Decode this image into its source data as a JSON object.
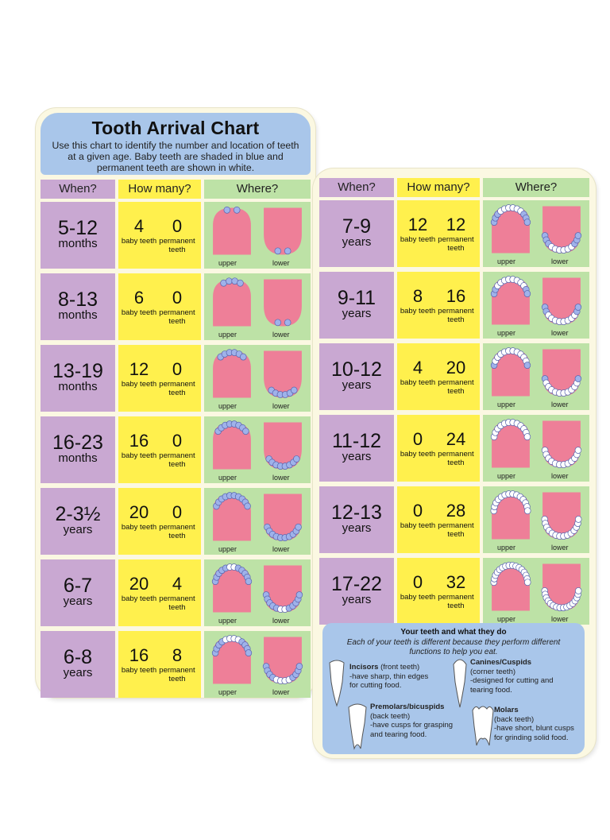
{
  "title": "Tooth Arrival Chart",
  "subtitle": "Use this chart to identify the number and location of teeth at a given age. Baby teeth are shaded in blue and permanent teeth are shown in white.",
  "headers": {
    "when": "When?",
    "how_many": "How many?",
    "where": "Where?"
  },
  "labels": {
    "baby": "baby teeth",
    "permanent": "permanent teeth",
    "upper": "upper",
    "lower": "lower"
  },
  "colors": {
    "when": "#c9a8d2",
    "how_many": "#fff04d",
    "where": "#bde2a6",
    "gum": "#ee7f98",
    "baby_tooth": "#9fb2ea",
    "permanent_tooth": "#ffffff",
    "title_box": "#a9c6ea"
  },
  "left_rows": [
    {
      "age": "5-12",
      "unit": "months",
      "baby": "4",
      "permanent": "0",
      "upper_baby": 2,
      "upper_perm": 0,
      "lower_baby": 2,
      "lower_perm": 0
    },
    {
      "age": "8-13",
      "unit": "months",
      "baby": "6",
      "permanent": "0",
      "upper_baby": 4,
      "upper_perm": 0,
      "lower_baby": 2,
      "lower_perm": 0
    },
    {
      "age": "13-19",
      "unit": "months",
      "baby": "12",
      "permanent": "0",
      "upper_baby": 6,
      "upper_perm": 0,
      "lower_baby": 6,
      "lower_perm": 0
    },
    {
      "age": "16-23",
      "unit": "months",
      "baby": "16",
      "permanent": "0",
      "upper_baby": 8,
      "upper_perm": 0,
      "lower_baby": 8,
      "lower_perm": 0
    },
    {
      "age": "2-3½",
      "unit": "years",
      "baby": "20",
      "permanent": "0",
      "upper_baby": 10,
      "upper_perm": 0,
      "lower_baby": 10,
      "lower_perm": 0
    },
    {
      "age": "6-7",
      "unit": "years",
      "baby": "20",
      "permanent": "4",
      "upper_baby": 10,
      "upper_perm": 2,
      "lower_baby": 10,
      "lower_perm": 2
    },
    {
      "age": "6-8",
      "unit": "years",
      "baby": "16",
      "permanent": "8",
      "upper_baby": 8,
      "upper_perm": 4,
      "lower_baby": 8,
      "lower_perm": 4
    }
  ],
  "right_rows": [
    {
      "age": "7-9",
      "unit": "years",
      "baby": "12",
      "permanent": "12",
      "upper_baby": 6,
      "upper_perm": 6,
      "lower_baby": 6,
      "lower_perm": 6
    },
    {
      "age": "9-11",
      "unit": "years",
      "baby": "8",
      "permanent": "16",
      "upper_baby": 4,
      "upper_perm": 8,
      "lower_baby": 4,
      "lower_perm": 8
    },
    {
      "age": "10-12",
      "unit": "years",
      "baby": "4",
      "permanent": "20",
      "upper_baby": 2,
      "upper_perm": 10,
      "lower_baby": 2,
      "lower_perm": 10
    },
    {
      "age": "11-12",
      "unit": "years",
      "baby": "0",
      "permanent": "24",
      "upper_baby": 0,
      "upper_perm": 12,
      "lower_baby": 0,
      "lower_perm": 12
    },
    {
      "age": "12-13",
      "unit": "years",
      "baby": "0",
      "permanent": "28",
      "upper_baby": 0,
      "upper_perm": 14,
      "lower_baby": 0,
      "lower_perm": 14
    },
    {
      "age": "17-22",
      "unit": "years",
      "baby": "0",
      "permanent": "32",
      "upper_baby": 0,
      "upper_perm": 16,
      "lower_baby": 0,
      "lower_perm": 16
    }
  ],
  "info": {
    "title": "Your teeth and what they do",
    "subtitle": "Each of your teeth is different because they perform different functions to help you eat.",
    "incisors": {
      "name": "Incisors",
      "detail": "(front teeth)",
      "line1": "-have sharp, thin edges",
      "line2": "for cutting food."
    },
    "canines": {
      "name": "Canines/Cuspids",
      "detail": "(corner teeth)",
      "line1": "-designed for cutting and",
      "line2": "tearing food."
    },
    "premolars": {
      "name": "Premolars/bicuspids",
      "detail": "(back teeth)",
      "line1": "-have cusps for grasping",
      "line2": "and tearing food."
    },
    "molars": {
      "name": "Molars",
      "detail": "(back teeth)",
      "line1": "-have short, blunt cusps",
      "line2": "for grinding solid food."
    }
  }
}
